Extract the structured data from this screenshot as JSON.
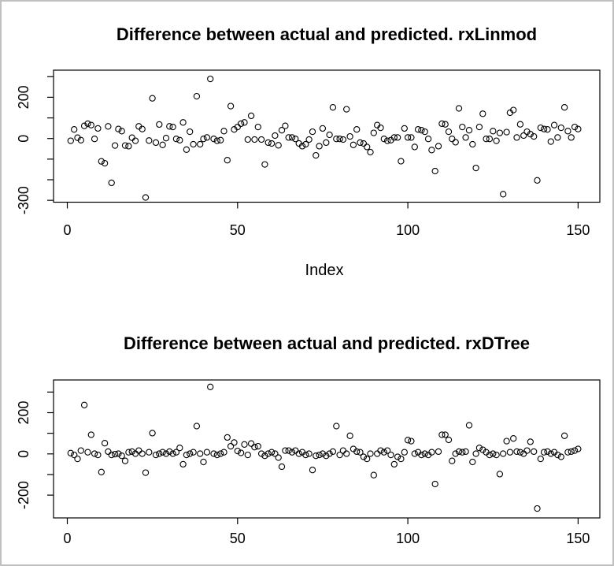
{
  "window": {
    "background_color": "#ffffff",
    "frame_border_color": "#c0c0c0"
  },
  "chart_data": [
    {
      "type": "scatter",
      "title": "Difference between actual and predicted. rxLinmod",
      "xlabel": "Index",
      "ylabel": "",
      "marker": "open-circle",
      "marker_color": "#000000",
      "x_description": "observation index, 1 to 150",
      "xlim": [
        -3,
        156
      ],
      "ylim": [
        -300,
        300
      ],
      "grid": false,
      "legend": "none",
      "x_ticks": {
        "values": [
          0,
          50,
          100,
          150
        ],
        "labels": [
          "0",
          "50",
          "100",
          "150"
        ]
      },
      "y_ticks": {
        "values": [
          300,
          200,
          100,
          0,
          -100,
          -200,
          -300
        ],
        "labels": [
          "",
          "200",
          "",
          "0",
          "",
          "",
          "-300"
        ]
      },
      "values": [
        -11,
        44,
        4,
        -8,
        61,
        72,
        65,
        -2,
        49,
        -111,
        -120,
        59,
        -215,
        -34,
        46,
        36,
        -34,
        -37,
        4,
        -11,
        59,
        46,
        -286,
        -10,
        195,
        -20,
        68,
        -31,
        2,
        59,
        56,
        -2,
        -8,
        78,
        -54,
        33,
        -28,
        205,
        -28,
        -2,
        5,
        289,
        -2,
        -11,
        -8,
        36,
        -105,
        157,
        44,
        56,
        72,
        78,
        -5,
        110,
        -5,
        56,
        -5,
        -126,
        -20,
        -24,
        14,
        -33,
        40,
        61,
        5,
        5,
        -2,
        -24,
        -37,
        -28,
        -5,
        33,
        -82,
        -37,
        49,
        -20,
        18,
        151,
        -2,
        -2,
        -5,
        142,
        10,
        -31,
        44,
        -20,
        -24,
        -41,
        -66,
        27,
        65,
        52,
        -2,
        -11,
        -8,
        5,
        5,
        -110,
        49,
        5,
        5,
        -41,
        44,
        40,
        33,
        -2,
        -56,
        -158,
        -37,
        72,
        69,
        33,
        -2,
        -18,
        146,
        56,
        5,
        40,
        -28,
        -143,
        56,
        120,
        -2,
        -2,
        36,
        -11,
        27,
        -270,
        31,
        125,
        138,
        5,
        69,
        14,
        33,
        21,
        10,
        -203,
        52,
        46,
        44,
        -15,
        65,
        5,
        52,
        151,
        36,
        5,
        56,
        46
      ]
    },
    {
      "type": "scatter",
      "title": "Difference between actual and predicted. rxDTree",
      "xlabel": "",
      "ylabel": "",
      "marker": "open-circle",
      "marker_color": "#000000",
      "x_description": "observation index, 1 to 150",
      "xlim": [
        -3,
        156
      ],
      "ylim": [
        -270,
        330
      ],
      "grid": false,
      "legend": "none",
      "x_ticks": {
        "values": [
          0,
          50,
          100,
          150
        ],
        "labels": [
          "0",
          "50",
          "100",
          "150"
        ]
      },
      "y_ticks": {
        "values": [
          300,
          200,
          100,
          0,
          -100,
          -200
        ],
        "labels": [
          "",
          "200",
          "",
          "0",
          "",
          "-200"
        ]
      },
      "values": [
        4,
        -5,
        -24,
        16,
        237,
        8,
        93,
        1,
        -5,
        -88,
        52,
        11,
        -5,
        -1,
        1,
        -9,
        -34,
        8,
        11,
        1,
        16,
        1,
        -91,
        8,
        101,
        -5,
        1,
        8,
        1,
        11,
        1,
        8,
        29,
        -50,
        -5,
        1,
        8,
        135,
        1,
        -39,
        8,
        325,
        1,
        -5,
        1,
        8,
        80,
        37,
        55,
        14,
        5,
        46,
        -5,
        50,
        33,
        37,
        1,
        -9,
        1,
        8,
        1,
        -18,
        -62,
        16,
        16,
        8,
        16,
        1,
        8,
        -5,
        1,
        -78,
        -9,
        -5,
        1,
        -9,
        1,
        11,
        135,
        -5,
        16,
        1,
        88,
        24,
        11,
        8,
        -14,
        -24,
        1,
        -103,
        1,
        16,
        8,
        16,
        -5,
        -50,
        -14,
        -24,
        8,
        67,
        62,
        1,
        8,
        -5,
        1,
        -5,
        8,
        -146,
        11,
        93,
        93,
        68,
        -34,
        1,
        11,
        8,
        11,
        139,
        -39,
        1,
        29,
        20,
        8,
        -5,
        1,
        -5,
        -98,
        1,
        62,
        8,
        75,
        11,
        8,
        1,
        16,
        59,
        11,
        -265,
        -24,
        8,
        11,
        1,
        8,
        -5,
        -14,
        88,
        8,
        11,
        16,
        24
      ]
    }
  ]
}
